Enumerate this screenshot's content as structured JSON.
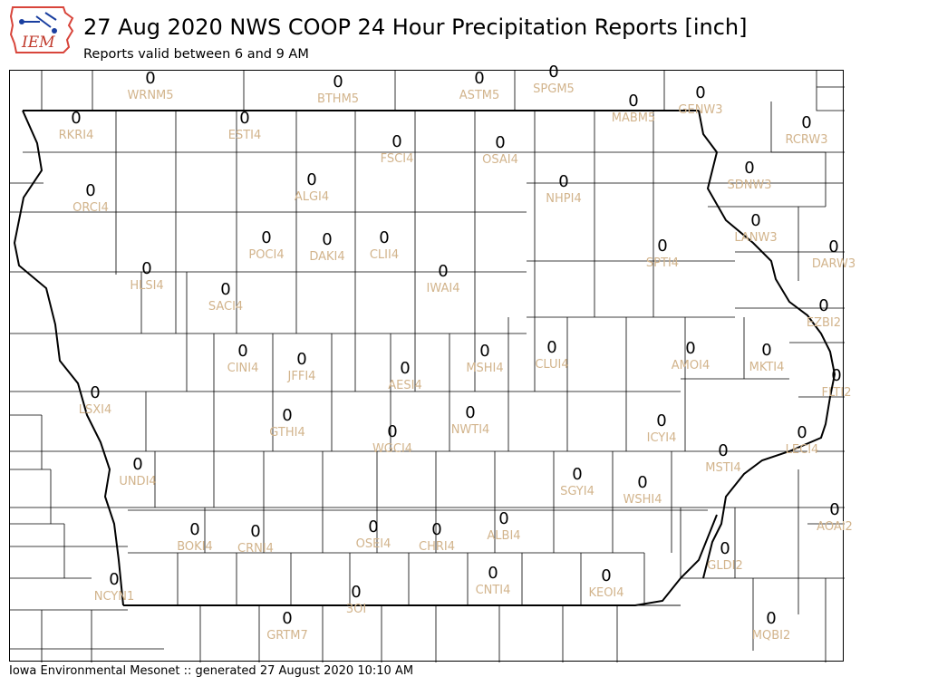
{
  "header": {
    "logo_text": "IEM",
    "title": "27 Aug 2020 NWS COOP 24 Hour Precipitation Reports [inch]",
    "subtitle": "Reports valid between 6 and 9 AM"
  },
  "footer": {
    "text": "Iowa Environmental Mesonet :: generated 27 August 2020 10:10 AM"
  },
  "colors": {
    "value": "#000000",
    "station_id": "#d2b48c",
    "state_border": "#000000",
    "county_line": "#000000"
  },
  "stations": [
    {
      "id": "WRNM5",
      "value": "0"
    },
    {
      "id": "BTHM5",
      "value": "0"
    },
    {
      "id": "ASTM5",
      "value": "0"
    },
    {
      "id": "SPGM5",
      "value": "0"
    },
    {
      "id": "MABM5",
      "value": "0"
    },
    {
      "id": "GENW3",
      "value": "0"
    },
    {
      "id": "RKRI4",
      "value": "0"
    },
    {
      "id": "ESTI4",
      "value": "0"
    },
    {
      "id": "FSCI4",
      "value": "0"
    },
    {
      "id": "OSAI4",
      "value": "0"
    },
    {
      "id": "RCRW3",
      "value": "0"
    },
    {
      "id": "SDNW3",
      "value": "0"
    },
    {
      "id": "ORCI4",
      "value": "0"
    },
    {
      "id": "ALGI4",
      "value": "0"
    },
    {
      "id": "NHPI4",
      "value": "0"
    },
    {
      "id": "LANW3",
      "value": "0"
    },
    {
      "id": "POCI4",
      "value": "0"
    },
    {
      "id": "DAKI4",
      "value": "0"
    },
    {
      "id": "CLII4",
      "value": "0"
    },
    {
      "id": "SPTI4",
      "value": "0"
    },
    {
      "id": "DARW3",
      "value": "0"
    },
    {
      "id": "HLSI4",
      "value": "0"
    },
    {
      "id": "IWAI4",
      "value": "0"
    },
    {
      "id": "SACI4",
      "value": "0"
    },
    {
      "id": "EZBI2",
      "value": "0"
    },
    {
      "id": "CINI4",
      "value": "0"
    },
    {
      "id": "JFFI4",
      "value": "0"
    },
    {
      "id": "MSHI4",
      "value": "0"
    },
    {
      "id": "CLUI4",
      "value": "0"
    },
    {
      "id": "AMOI4",
      "value": "0"
    },
    {
      "id": "MKTI4",
      "value": "0"
    },
    {
      "id": "AESI4",
      "value": "0"
    },
    {
      "id": "FLTI2",
      "value": "0"
    },
    {
      "id": "LSXI4",
      "value": "0"
    },
    {
      "id": "GTHI4",
      "value": "0"
    },
    {
      "id": "NWTI4",
      "value": "0"
    },
    {
      "id": "ICYI4",
      "value": "0"
    },
    {
      "id": "WGCI4",
      "value": "0"
    },
    {
      "id": "LECI4",
      "value": "0"
    },
    {
      "id": "MSTI4",
      "value": "0"
    },
    {
      "id": "UNDI4",
      "value": "0"
    },
    {
      "id": "SGYI4",
      "value": "0"
    },
    {
      "id": "WSHI4",
      "value": "0"
    },
    {
      "id": "AOAI2",
      "value": "0"
    },
    {
      "id": "BOKI4",
      "value": "0"
    },
    {
      "id": "CRNI4",
      "value": "0"
    },
    {
      "id": "OSEI4",
      "value": "0"
    },
    {
      "id": "CHRI4",
      "value": "0"
    },
    {
      "id": "ALBI4",
      "value": "0"
    },
    {
      "id": "NCYN1",
      "value": "0"
    },
    {
      "id": "CNTI4",
      "value": "0"
    },
    {
      "id": "KEOI4",
      "value": "0"
    },
    {
      "id": "GLDI2",
      "value": "0"
    },
    {
      "id": "3OI",
      "value": "0"
    },
    {
      "id": "GRTM7",
      "value": "0"
    },
    {
      "id": "MQBI2",
      "value": "0"
    }
  ]
}
